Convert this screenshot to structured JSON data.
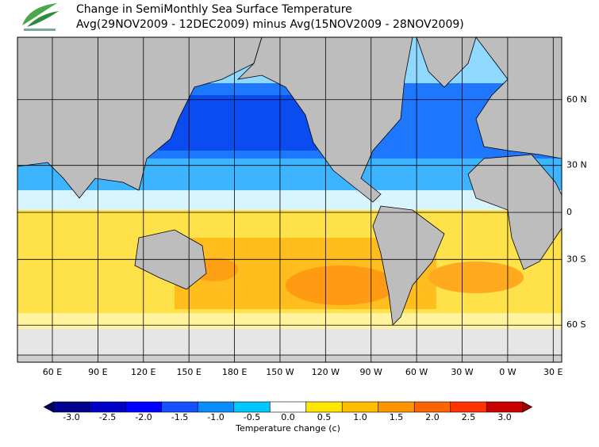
{
  "header": {
    "title": "Change in SemiMonthly Sea Surface Temperature",
    "subtitle": "Avg(29NOV2009 - 12DEC2009) minus Avg(15NOV2009 - 28NOV2009)"
  },
  "map": {
    "lon_ticks": [
      {
        "value": 60,
        "label": "60 E"
      },
      {
        "value": 90,
        "label": "90 E"
      },
      {
        "value": 120,
        "label": "120 E"
      },
      {
        "value": 150,
        "label": "150 E"
      },
      {
        "value": 180,
        "label": "180 E"
      },
      {
        "value": -150,
        "label": "150 W"
      },
      {
        "value": -120,
        "label": "120 W"
      },
      {
        "value": -90,
        "label": "90 W"
      },
      {
        "value": -60,
        "label": "60 W"
      },
      {
        "value": -30,
        "label": "30 W"
      },
      {
        "value": 0,
        "label": "0 W"
      },
      {
        "value": 30,
        "label": "30 E"
      }
    ],
    "lat_ticks": [
      {
        "value": 60,
        "label": "60 N"
      },
      {
        "value": 30,
        "label": "30 N"
      },
      0,
      {
        "value": -30,
        "label": "30 S"
      },
      {
        "value": -60,
        "label": "60 S"
      }
    ]
  },
  "colorbar": {
    "ticks": [
      {
        "value": -3,
        "label": "-3.0"
      },
      {
        "value": -2.5,
        "label": "-2.5"
      },
      {
        "value": -2,
        "label": "-2.0"
      },
      {
        "value": -1.5,
        "label": "-1.5"
      },
      {
        "value": -1,
        "label": "-1.0"
      },
      {
        "value": -0.5,
        "label": "-0.5"
      },
      {
        "value": 0,
        "label": "0.0"
      },
      {
        "value": 0.5,
        "label": "0.5"
      },
      {
        "value": 1,
        "label": "1.0"
      },
      {
        "value": 1.5,
        "label": "1.5"
      },
      {
        "value": 2,
        "label": "2.0"
      },
      {
        "value": 2.5,
        "label": "2.5"
      },
      {
        "value": 3,
        "label": "3.0"
      }
    ],
    "colors": [
      "#00008c",
      "#0000c8",
      "#0000ff",
      "#1450ff",
      "#0a8cff",
      "#00c8ff",
      "#ffffff",
      "#ffe600",
      "#ffbe00",
      "#ff9600",
      "#ff6400",
      "#ff3200",
      "#c80000"
    ],
    "under_color": "#00005a",
    "over_color": "#a00000",
    "title": "Temperature change  (c)"
  }
}
